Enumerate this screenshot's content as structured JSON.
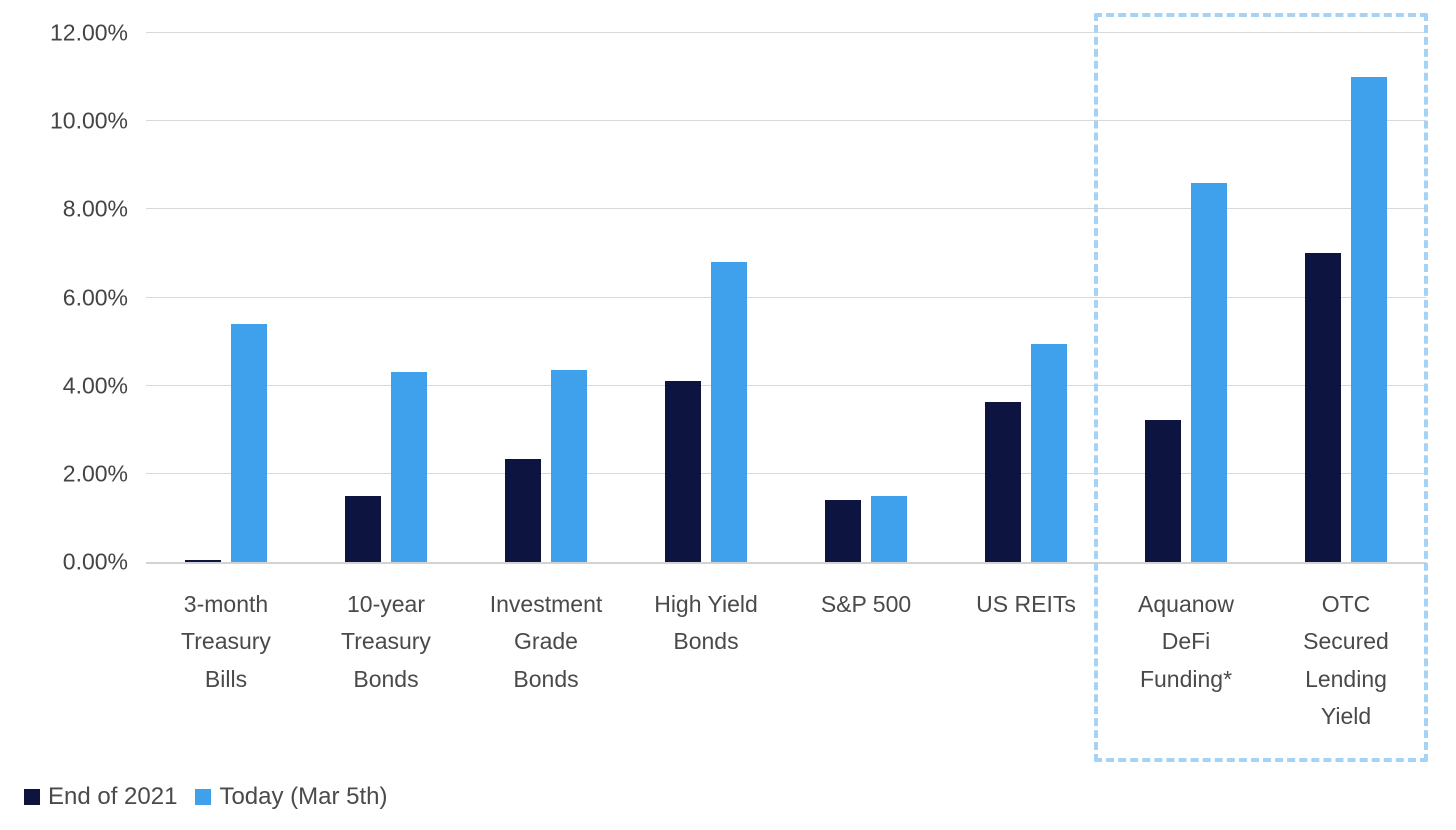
{
  "chart_data": {
    "type": "bar",
    "title": "",
    "xlabel": "",
    "ylabel": "",
    "ylim": [
      0,
      12
    ],
    "grid": true,
    "legend_position": "bottom-left",
    "yticks": [
      {
        "value": 0,
        "label": "0.00%"
      },
      {
        "value": 2,
        "label": "2.00%"
      },
      {
        "value": 4,
        "label": "4.00%"
      },
      {
        "value": 6,
        "label": "6.00%"
      },
      {
        "value": 8,
        "label": "8.00%"
      },
      {
        "value": 10,
        "label": "10.00%"
      },
      {
        "value": 12,
        "label": "12.00%"
      }
    ],
    "categories": [
      "3-month Treasury Bills",
      "10-year Treasury Bonds",
      "Investment Grade Bonds",
      "High Yield Bonds",
      "S&P 500",
      "US REITs",
      "Aquanow DeFi Funding*",
      "OTC Secured Lending Yield"
    ],
    "x_tick_label_lines": [
      [
        "3-month",
        "Treasury",
        "Bills"
      ],
      [
        "10-year",
        "Treasury",
        "Bonds"
      ],
      [
        "Investment",
        "Grade",
        "Bonds"
      ],
      [
        "High Yield",
        "Bonds"
      ],
      [
        "S&P 500"
      ],
      [
        "US REITs"
      ],
      [
        "Aquanow",
        "DeFi",
        "Funding*"
      ],
      [
        "OTC",
        "Secured",
        "Lending",
        "Yield"
      ]
    ],
    "series": [
      {
        "name": "End of 2021",
        "color": "#0d1440",
        "values": [
          0.05,
          1.5,
          2.33,
          4.1,
          1.4,
          3.62,
          3.22,
          7.0
        ]
      },
      {
        "name": "Today (Mar 5th)",
        "color": "#3fa1ec",
        "values": [
          5.4,
          4.3,
          4.35,
          6.8,
          1.5,
          4.95,
          8.6,
          11.0
        ]
      }
    ],
    "highlight": {
      "style": "dashed-box",
      "color": "#a6d3f4",
      "categories": [
        "Aquanow DeFi Funding*",
        "OTC Secured Lending Yield"
      ]
    }
  },
  "colors": {
    "gridline": "#d9d9d9",
    "axis_line": "#d2d2d2",
    "tick_text": "#444444",
    "label_text": "#4a4a4a"
  }
}
